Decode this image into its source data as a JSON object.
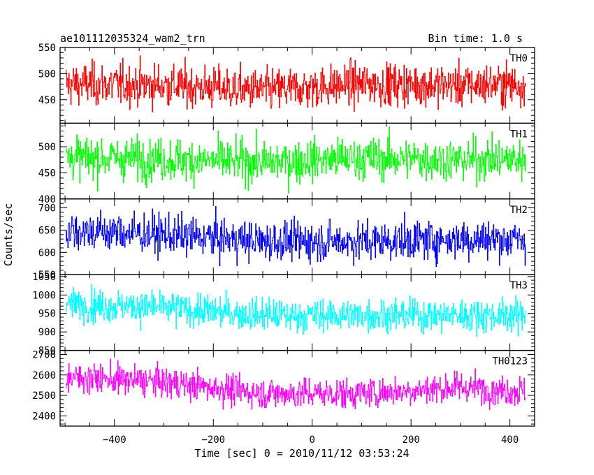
{
  "header": {
    "title": "ae101112035324_wam2_trn",
    "bin_time": "Bin time: 1.0 s"
  },
  "chart_data": {
    "type": "line",
    "xlabel": "Time [sec] 0 = 2010/11/12 03:53:24",
    "ylabel": "Counts/sec",
    "xlim": [
      -510,
      450
    ],
    "x_ticks": [
      -400,
      -200,
      0,
      200,
      400
    ],
    "x_step": 1.0,
    "x_range": [
      -498,
      432
    ],
    "panels": [
      {
        "name": "TH0",
        "color": "#ff0000",
        "ylim": [
          405,
          550
        ],
        "y_ticks": [
          450,
          500,
          550
        ],
        "mean": 478,
        "spread": 30,
        "trend": [
          [
            -498,
            480
          ],
          [
            -300,
            478
          ],
          [
            -100,
            468
          ],
          [
            100,
            480
          ],
          [
            300,
            478
          ],
          [
            432,
            480
          ]
        ]
      },
      {
        "name": "TH1",
        "color": "#00ff00",
        "ylim": [
          400,
          545
        ],
        "y_ticks": [
          400,
          450,
          500
        ],
        "mean": 475,
        "spread": 30,
        "trend": [
          [
            -498,
            480
          ],
          [
            -300,
            476
          ],
          [
            -100,
            470
          ],
          [
            100,
            478
          ],
          [
            300,
            475
          ],
          [
            432,
            476
          ]
        ]
      },
      {
        "name": "TH2",
        "color": "#0000ff",
        "ylim": [
          550,
          720
        ],
        "y_ticks": [
          550,
          600,
          650,
          700
        ],
        "mean": 635,
        "spread": 33,
        "trend": [
          [
            -498,
            650
          ],
          [
            -300,
            640
          ],
          [
            -100,
            625
          ],
          [
            100,
            625
          ],
          [
            300,
            630
          ],
          [
            432,
            628
          ]
        ]
      },
      {
        "name": "TH3",
        "color": "#00ffff",
        "ylim": [
          850,
          1055
        ],
        "y_ticks": [
          850,
          900,
          950,
          1000,
          1050
        ],
        "mean": 955,
        "spread": 33,
        "trend": [
          [
            -498,
            975
          ],
          [
            -300,
            965
          ],
          [
            -100,
            945
          ],
          [
            100,
            945
          ],
          [
            300,
            945
          ],
          [
            432,
            945
          ]
        ]
      },
      {
        "name": "TH0123",
        "color": "#ff00ff",
        "ylim": [
          2350,
          2720
        ],
        "y_ticks": [
          2400,
          2500,
          2600,
          2700
        ],
        "mean": 2540,
        "spread": 55,
        "trend": [
          [
            -498,
            2590
          ],
          [
            -300,
            2565
          ],
          [
            -100,
            2510
          ],
          [
            100,
            2510
          ],
          [
            300,
            2540
          ],
          [
            432,
            2520
          ]
        ]
      }
    ]
  }
}
